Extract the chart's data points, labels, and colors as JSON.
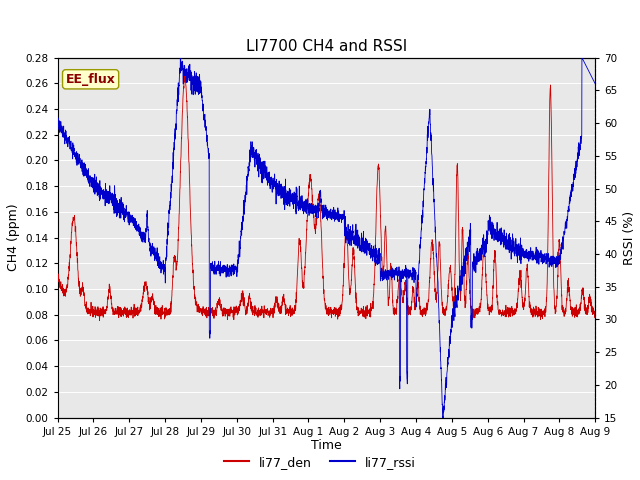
{
  "title": "LI7700 CH4 and RSSI",
  "xlabel": "Time",
  "ylabel_left": "CH4 (ppm)",
  "ylabel_right": "RSSI (%)",
  "annotation": "EE_flux",
  "ylim_left": [
    0.0,
    0.28
  ],
  "ylim_right": [
    15,
    70
  ],
  "yticks_left": [
    0.0,
    0.02,
    0.04,
    0.06,
    0.08,
    0.1,
    0.12,
    0.14,
    0.16,
    0.18,
    0.2,
    0.22,
    0.24,
    0.26,
    0.28
  ],
  "yticks_right": [
    15,
    20,
    25,
    30,
    35,
    40,
    45,
    50,
    55,
    60,
    65,
    70
  ],
  "xtick_labels": [
    "Jul 25",
    "Jul 26",
    "Jul 27",
    "Jul 28",
    "Jul 29",
    "Jul 30",
    "Jul 31",
    "Aug 1",
    "Aug 2",
    "Aug 3",
    "Aug 4",
    "Aug 5",
    "Aug 6",
    "Aug 7",
    "Aug 8",
    "Aug 9"
  ],
  "color_ch4": "#cc0000",
  "color_rssi": "#0000cc",
  "legend_label_ch4": "li77_den",
  "legend_label_rssi": "li77_rssi",
  "fig_bg_color": "#ffffff",
  "plot_bg_color": "#e8e8e8",
  "grid_color": "#ffffff",
  "title_fontsize": 11,
  "label_fontsize": 9,
  "tick_fontsize": 7.5,
  "annotation_fontsize": 9,
  "legend_fontsize": 9,
  "n_points": 3360,
  "days_total": 15
}
